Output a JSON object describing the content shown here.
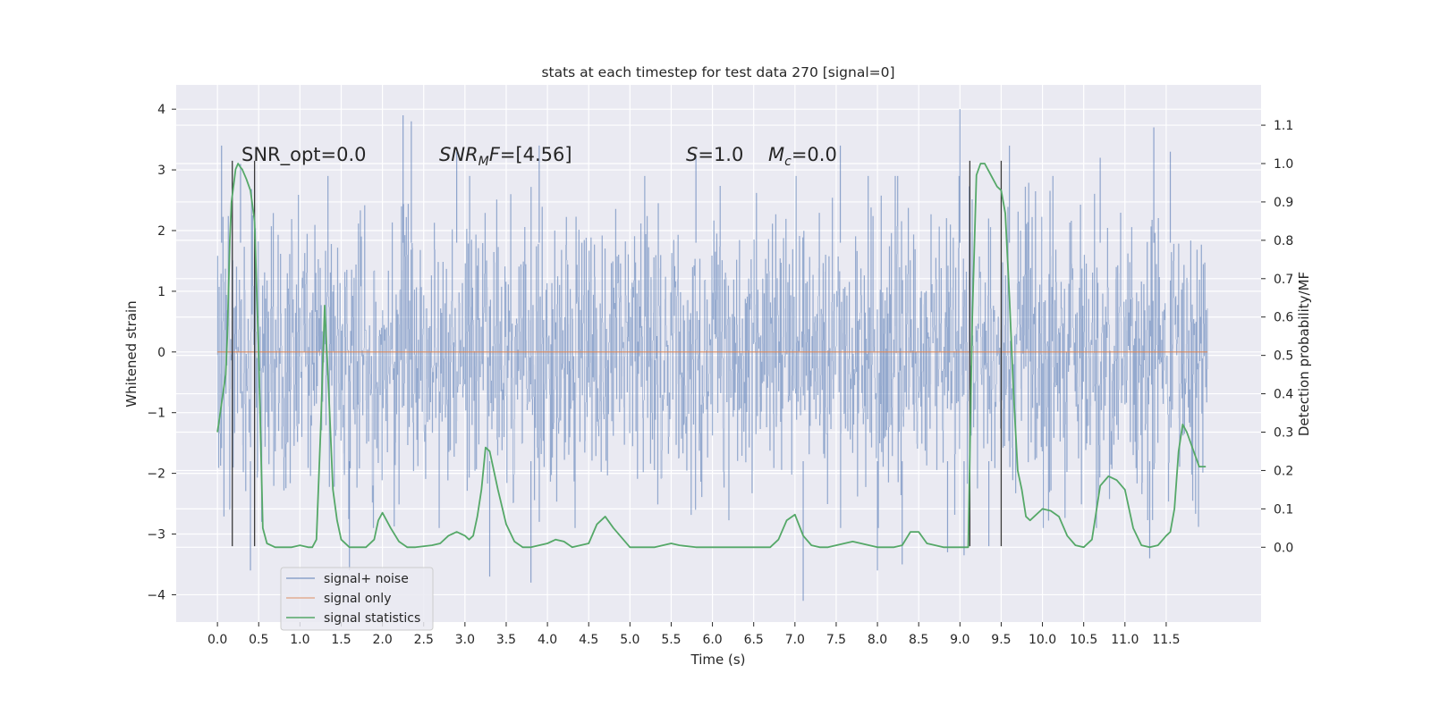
{
  "chart_data": {
    "type": "line",
    "title": "stats at each timestep for test data 270 [signal=0]",
    "xlabel": "Time (s)",
    "ylabel": "Whitened strain",
    "y2label": "Detection probability/MF",
    "xlim": [
      -0.5,
      12.65
    ],
    "ylim": [
      -4.45,
      4.4
    ],
    "y2lim": [
      -0.195,
      1.205
    ],
    "x_ticks": [
      0.0,
      0.5,
      1.0,
      1.5,
      2.0,
      2.5,
      3.0,
      3.5,
      4.0,
      4.5,
      5.0,
      5.5,
      6.0,
      6.5,
      7.0,
      7.5,
      8.0,
      8.5,
      9.0,
      9.5,
      10.0,
      10.5,
      11.0,
      11.5
    ],
    "x_tick_labels": [
      "0.0",
      "0.5",
      "1.0",
      "1.5",
      "2.0",
      "2.5",
      "3.0",
      "3.5",
      "4.0",
      "4.5",
      "5.0",
      "5.5",
      "6.0",
      "6.5",
      "7.0",
      "7.5",
      "8.0",
      "8.5",
      "9.0",
      "9.5",
      "10.0",
      "10.5",
      "11.0",
      "11.5"
    ],
    "y_ticks": [
      4,
      3,
      2,
      1,
      0,
      -1,
      -2,
      -3,
      -4
    ],
    "y_tick_labels": [
      "4",
      "3",
      "2",
      "1",
      "0",
      "−1",
      "−2",
      "−3",
      "−4"
    ],
    "y2_ticks": [
      1.1,
      1.0,
      0.9,
      0.8,
      0.7,
      0.6,
      0.5,
      0.4,
      0.3,
      0.2,
      0.1,
      0.0
    ],
    "y2_tick_labels": [
      "1.1",
      "1.0",
      "0.9",
      "0.8",
      "0.7",
      "0.6",
      "0.5",
      "0.4",
      "0.3",
      "0.2",
      "0.1",
      "0.0"
    ],
    "grid": true,
    "legend_position": "lower-left",
    "annotations": {
      "snr_opt": "SNR_opt=0.0",
      "snr_mf_main": "SNR",
      "snr_mf_sub": "M",
      "snr_mf_rest": "F",
      "snr_mf_value": "=[4.56]",
      "s_main": "S",
      "s_value": "=1.0",
      "mc_main": "M",
      "mc_sub": "c",
      "mc_value": "=0.0"
    },
    "series": [
      {
        "name": "signal+ noise",
        "axis": "left",
        "color": "#4c72b0",
        "description": "whitened strain noise trace spanning 0 to 12 s",
        "x_range": [
          0.0,
          12.0
        ],
        "sample_count": 2048,
        "core_std": 1.15,
        "spike_peaks": [
          {
            "x": 0.05,
            "y": 3.4
          },
          {
            "x": 0.28,
            "y": 3.1
          },
          {
            "x": 2.25,
            "y": 3.9
          },
          {
            "x": 2.35,
            "y": 3.8
          },
          {
            "x": 2.9,
            "y": 3.3
          },
          {
            "x": 3.9,
            "y": 3.4
          },
          {
            "x": 5.8,
            "y": 3.2
          },
          {
            "x": 7.55,
            "y": 3.4
          },
          {
            "x": 9.0,
            "y": 4.0
          },
          {
            "x": 9.6,
            "y": 3.4
          },
          {
            "x": 10.7,
            "y": 3.2
          },
          {
            "x": 11.35,
            "y": 3.7
          },
          {
            "x": 11.55,
            "y": 3.3
          },
          {
            "x": 0.4,
            "y": -3.6
          },
          {
            "x": 1.6,
            "y": -3.6
          },
          {
            "x": 3.3,
            "y": -3.7
          },
          {
            "x": 3.8,
            "y": -3.8
          },
          {
            "x": 7.1,
            "y": -4.1
          },
          {
            "x": 8.0,
            "y": -3.6
          },
          {
            "x": 8.3,
            "y": -3.5
          },
          {
            "x": 8.85,
            "y": -3.3
          },
          {
            "x": 9.05,
            "y": -3.35
          },
          {
            "x": 9.35,
            "y": -3.2
          },
          {
            "x": 11.3,
            "y": -3.4
          }
        ]
      },
      {
        "name": "signal only",
        "axis": "left",
        "color": "#dd8452",
        "x": [
          0.0,
          12.0
        ],
        "y": [
          0.0,
          0.0
        ]
      },
      {
        "name": "signal statistics",
        "axis": "right",
        "color": "#55a868",
        "x": [
          0.0,
          0.1,
          0.12,
          0.15,
          0.17,
          0.2,
          0.22,
          0.25,
          0.28,
          0.3,
          0.35,
          0.4,
          0.45,
          0.5,
          0.55,
          0.6,
          0.7,
          0.8,
          0.9,
          1.0,
          1.1,
          1.15,
          1.2,
          1.25,
          1.3,
          1.35,
          1.4,
          1.45,
          1.5,
          1.6,
          1.7,
          1.8,
          1.9,
          1.95,
          2.0,
          2.1,
          2.2,
          2.3,
          2.4,
          2.6,
          2.7,
          2.8,
          2.9,
          3.0,
          3.05,
          3.1,
          3.15,
          3.2,
          3.25,
          3.3,
          3.4,
          3.5,
          3.6,
          3.7,
          3.8,
          3.9,
          4.0,
          4.1,
          4.2,
          4.3,
          4.4,
          4.5,
          4.6,
          4.7,
          4.8,
          5.0,
          5.2,
          5.3,
          5.4,
          5.5,
          5.6,
          5.8,
          6.0,
          6.2,
          6.4,
          6.6,
          6.7,
          6.8,
          6.9,
          7.0,
          7.1,
          7.2,
          7.3,
          7.4,
          7.5,
          7.6,
          7.7,
          7.8,
          8.0,
          8.1,
          8.2,
          8.3,
          8.4,
          8.5,
          8.6,
          8.8,
          9.0,
          9.1,
          9.15,
          9.2,
          9.25,
          9.3,
          9.35,
          9.4,
          9.45,
          9.5,
          9.55,
          9.6,
          9.65,
          9.7,
          9.75,
          9.8,
          9.85,
          9.9,
          10.0,
          10.1,
          10.2,
          10.3,
          10.4,
          10.5,
          10.6,
          10.7,
          10.8,
          10.9,
          11.0,
          11.1,
          11.2,
          11.3,
          11.4,
          11.5,
          11.55,
          11.6,
          11.65,
          11.7,
          11.75,
          11.8,
          11.9,
          11.98
        ],
        "y": [
          0.3,
          0.45,
          0.55,
          0.8,
          0.9,
          0.95,
          0.985,
          1.0,
          0.99,
          0.985,
          0.96,
          0.93,
          0.85,
          0.5,
          0.05,
          0.01,
          0.0,
          0.0,
          0.0,
          0.005,
          0.0,
          0.0,
          0.02,
          0.3,
          0.63,
          0.4,
          0.15,
          0.07,
          0.02,
          0.0,
          0.0,
          0.0,
          0.02,
          0.07,
          0.09,
          0.05,
          0.015,
          0.0,
          0.0,
          0.005,
          0.01,
          0.03,
          0.04,
          0.03,
          0.02,
          0.03,
          0.08,
          0.15,
          0.26,
          0.25,
          0.15,
          0.06,
          0.015,
          0.0,
          0.0,
          0.005,
          0.01,
          0.02,
          0.015,
          0.0,
          0.005,
          0.01,
          0.06,
          0.08,
          0.05,
          0.0,
          0.0,
          0.0,
          0.005,
          0.01,
          0.005,
          0.0,
          0.0,
          0.0,
          0.0,
          0.0,
          0.0,
          0.02,
          0.07,
          0.085,
          0.03,
          0.005,
          0.0,
          0.0,
          0.005,
          0.01,
          0.015,
          0.01,
          0.0,
          0.0,
          0.0,
          0.005,
          0.04,
          0.04,
          0.01,
          0.0,
          0.0,
          0.0,
          0.6,
          0.97,
          1.0,
          1.0,
          0.98,
          0.96,
          0.94,
          0.93,
          0.87,
          0.65,
          0.4,
          0.2,
          0.15,
          0.08,
          0.07,
          0.08,
          0.1,
          0.095,
          0.08,
          0.03,
          0.005,
          0.0,
          0.02,
          0.16,
          0.185,
          0.175,
          0.15,
          0.05,
          0.005,
          0.0,
          0.005,
          0.03,
          0.04,
          0.1,
          0.25,
          0.32,
          0.3,
          0.27,
          0.21,
          0.21
        ]
      }
    ],
    "vertical_markers": {
      "color": "#3a3a3a",
      "x": [
        0.18,
        0.45,
        9.12,
        9.5
      ],
      "y_bottom": -3.2,
      "y_top": 3.15
    }
  }
}
